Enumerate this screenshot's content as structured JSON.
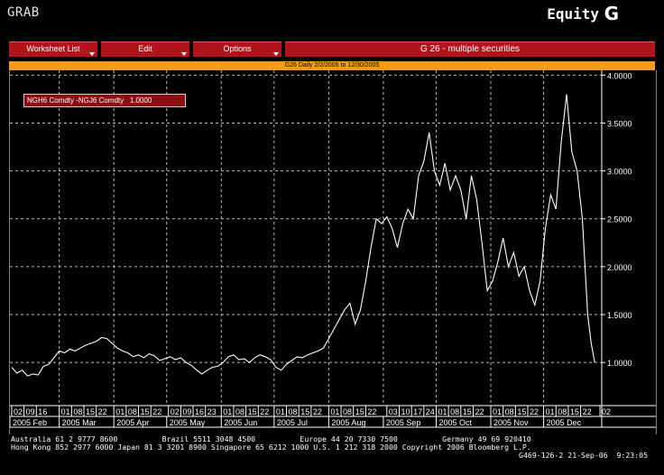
{
  "app_title": "GRAB",
  "screen_title": "Equity",
  "screen_letter": "G",
  "menu": {
    "worksheet_list": "Worksheet List",
    "edit": "Edit",
    "options": "Options",
    "security_title": "G 26 - multiple securities"
  },
  "chart_header": "G26 Daily 2/2/2005 to 12/30/2005",
  "legend": {
    "label": "NGH6 Comdty -NGJ6 Comdty",
    "value": "1.0000"
  },
  "colors": {
    "menu_red": "#b3141b",
    "header_orange": "#f39c1b",
    "legend_red": "#8b0d12",
    "line": "#ffffff"
  },
  "footer": {
    "line1": "Australia 61 2 9777 8600          Brazil 5511 3048 4500          Europe 44 20 7330 7500          Germany 49 69 920410",
    "line2": "Hong Kong 852 2977 6000 Japan 81 3 3201 8900 Singapore 65 6212 1000 U.S. 1 212 318 2000 Copyright 2006 Bloomberg L.P.",
    "line3": "G469-126-2 21-Sep-06  9:23:05"
  },
  "chart_data": {
    "type": "line",
    "title": "G26 Daily 2/2/2005 to 12/30/2005",
    "series": [
      {
        "name": "NGH6 Comdty -NGJ6 Comdty",
        "color": "#ffffff",
        "points": [
          [
            "2005-02-02",
            0.95
          ],
          [
            "2005-02-05",
            0.89
          ],
          [
            "2005-02-08",
            0.92
          ],
          [
            "2005-02-11",
            0.86
          ],
          [
            "2005-02-14",
            0.88
          ],
          [
            "2005-02-17",
            0.87
          ],
          [
            "2005-02-20",
            0.96
          ],
          [
            "2005-02-23",
            0.98
          ],
          [
            "2005-02-26",
            1.05
          ],
          [
            "2005-03-01",
            1.12
          ],
          [
            "2005-03-04",
            1.1
          ],
          [
            "2005-03-07",
            1.14
          ],
          [
            "2005-03-10",
            1.12
          ],
          [
            "2005-03-13",
            1.15
          ],
          [
            "2005-03-16",
            1.18
          ],
          [
            "2005-03-19",
            1.2
          ],
          [
            "2005-03-22",
            1.22
          ],
          [
            "2005-03-25",
            1.26
          ],
          [
            "2005-03-28",
            1.25
          ],
          [
            "2005-03-31",
            1.2
          ],
          [
            "2005-04-03",
            1.15
          ],
          [
            "2005-04-06",
            1.12
          ],
          [
            "2005-04-09",
            1.1
          ],
          [
            "2005-04-12",
            1.06
          ],
          [
            "2005-04-15",
            1.08
          ],
          [
            "2005-04-18",
            1.05
          ],
          [
            "2005-04-21",
            1.09
          ],
          [
            "2005-04-24",
            1.07
          ],
          [
            "2005-04-27",
            1.02
          ],
          [
            "2005-04-30",
            1.04
          ],
          [
            "2005-05-03",
            1.06
          ],
          [
            "2005-05-06",
            1.03
          ],
          [
            "2005-05-09",
            1.05
          ],
          [
            "2005-05-12",
            1.0
          ],
          [
            "2005-05-15",
            0.97
          ],
          [
            "2005-05-18",
            0.92
          ],
          [
            "2005-05-21",
            0.88
          ],
          [
            "2005-05-24",
            0.92
          ],
          [
            "2005-05-27",
            0.95
          ],
          [
            "2005-05-30",
            0.96
          ],
          [
            "2005-06-02",
            1.0
          ],
          [
            "2005-06-05",
            1.06
          ],
          [
            "2005-06-08",
            1.08
          ],
          [
            "2005-06-11",
            1.03
          ],
          [
            "2005-06-14",
            1.04
          ],
          [
            "2005-06-17",
            1.0
          ],
          [
            "2005-06-20",
            1.05
          ],
          [
            "2005-06-23",
            1.08
          ],
          [
            "2005-06-26",
            1.06
          ],
          [
            "2005-06-29",
            1.03
          ],
          [
            "2005-07-02",
            0.95
          ],
          [
            "2005-07-05",
            0.92
          ],
          [
            "2005-07-08",
            0.98
          ],
          [
            "2005-07-11",
            1.02
          ],
          [
            "2005-07-14",
            1.06
          ],
          [
            "2005-07-17",
            1.05
          ],
          [
            "2005-07-20",
            1.08
          ],
          [
            "2005-07-23",
            1.1
          ],
          [
            "2005-07-26",
            1.12
          ],
          [
            "2005-07-29",
            1.15
          ],
          [
            "2005-08-01",
            1.25
          ],
          [
            "2005-08-04",
            1.35
          ],
          [
            "2005-08-07",
            1.45
          ],
          [
            "2005-08-10",
            1.55
          ],
          [
            "2005-08-13",
            1.62
          ],
          [
            "2005-08-16",
            1.4
          ],
          [
            "2005-08-19",
            1.55
          ],
          [
            "2005-08-22",
            1.85
          ],
          [
            "2005-08-25",
            2.2
          ],
          [
            "2005-08-28",
            2.5
          ],
          [
            "2005-08-31",
            2.45
          ],
          [
            "2005-09-03",
            2.52
          ],
          [
            "2005-09-06",
            2.4
          ],
          [
            "2005-09-09",
            2.2
          ],
          [
            "2005-09-12",
            2.45
          ],
          [
            "2005-09-15",
            2.6
          ],
          [
            "2005-09-18",
            2.5
          ],
          [
            "2005-09-21",
            2.95
          ],
          [
            "2005-09-24",
            3.1
          ],
          [
            "2005-09-27",
            3.4
          ],
          [
            "2005-09-30",
            3.0
          ],
          [
            "2005-10-03",
            2.85
          ],
          [
            "2005-10-06",
            3.08
          ],
          [
            "2005-10-09",
            2.8
          ],
          [
            "2005-10-12",
            2.95
          ],
          [
            "2005-10-15",
            2.8
          ],
          [
            "2005-10-18",
            2.5
          ],
          [
            "2005-10-21",
            2.95
          ],
          [
            "2005-10-24",
            2.7
          ],
          [
            "2005-10-27",
            2.25
          ],
          [
            "2005-10-30",
            1.75
          ],
          [
            "2005-11-02",
            1.85
          ],
          [
            "2005-11-05",
            2.05
          ],
          [
            "2005-11-08",
            2.3
          ],
          [
            "2005-11-11",
            2.0
          ],
          [
            "2005-11-14",
            2.15
          ],
          [
            "2005-11-17",
            1.9
          ],
          [
            "2005-11-20",
            2.0
          ],
          [
            "2005-11-23",
            1.75
          ],
          [
            "2005-11-26",
            1.6
          ],
          [
            "2005-11-29",
            1.85
          ],
          [
            "2005-12-02",
            2.4
          ],
          [
            "2005-12-05",
            2.75
          ],
          [
            "2005-12-08",
            2.6
          ],
          [
            "2005-12-11",
            3.3
          ],
          [
            "2005-12-14",
            3.8
          ],
          [
            "2005-12-17",
            3.2
          ],
          [
            "2005-12-20",
            3.0
          ],
          [
            "2005-12-23",
            2.5
          ],
          [
            "2005-12-26",
            1.5
          ],
          [
            "2005-12-28",
            1.2
          ],
          [
            "2005-12-30",
            1.0
          ]
        ]
      }
    ],
    "y_ticks": [
      "1.0000",
      "1.5000",
      "2.0000",
      "2.5000",
      "3.0000",
      "3.5000",
      "4.0000"
    ],
    "ylim": [
      0.55,
      4.05
    ],
    "xlim": [
      "2005-02-01",
      "2006-01-03"
    ],
    "x_ticks": [
      [
        "2005-02-02",
        "02"
      ],
      [
        "2005-02-09",
        "09"
      ],
      [
        "2005-02-16",
        "16"
      ],
      [
        "2005-03-01",
        "01"
      ],
      [
        "2005-03-08",
        "08"
      ],
      [
        "2005-03-15",
        "15"
      ],
      [
        "2005-03-22",
        "22"
      ],
      [
        "2005-04-01",
        "01"
      ],
      [
        "2005-04-08",
        "08"
      ],
      [
        "2005-04-15",
        "15"
      ],
      [
        "2005-04-22",
        "22"
      ],
      [
        "2005-05-02",
        "02"
      ],
      [
        "2005-05-09",
        "09"
      ],
      [
        "2005-05-16",
        "16"
      ],
      [
        "2005-05-23",
        "23"
      ],
      [
        "2005-06-01",
        "01"
      ],
      [
        "2005-06-08",
        "08"
      ],
      [
        "2005-06-15",
        "15"
      ],
      [
        "2005-06-22",
        "22"
      ],
      [
        "2005-07-01",
        "01"
      ],
      [
        "2005-07-08",
        "08"
      ],
      [
        "2005-07-15",
        "15"
      ],
      [
        "2005-07-22",
        "22"
      ],
      [
        "2005-08-01",
        "01"
      ],
      [
        "2005-08-08",
        "08"
      ],
      [
        "2005-08-15",
        "15"
      ],
      [
        "2005-08-22",
        "22"
      ],
      [
        "2005-09-03",
        "03"
      ],
      [
        "2005-09-10",
        "10"
      ],
      [
        "2005-09-17",
        "17"
      ],
      [
        "2005-09-24",
        "24"
      ],
      [
        "2005-10-01",
        "01"
      ],
      [
        "2005-10-08",
        "08"
      ],
      [
        "2005-10-15",
        "15"
      ],
      [
        "2005-10-22",
        "22"
      ],
      [
        "2005-11-01",
        "01"
      ],
      [
        "2005-11-08",
        "08"
      ],
      [
        "2005-11-15",
        "15"
      ],
      [
        "2005-11-22",
        "22"
      ],
      [
        "2005-12-01",
        "01"
      ],
      [
        "2005-12-08",
        "08"
      ],
      [
        "2005-12-15",
        "15"
      ],
      [
        "2005-12-22",
        "22"
      ],
      [
        "2006-01-02",
        "02"
      ]
    ],
    "x_months": [
      [
        "2005-02-01",
        "2005 Feb"
      ],
      [
        "2005-03-01",
        "2005 Mar"
      ],
      [
        "2005-04-01",
        "2005 Apr"
      ],
      [
        "2005-05-01",
        "2005 May"
      ],
      [
        "2005-06-01",
        "2005 Jun"
      ],
      [
        "2005-07-01",
        "2005 Jul"
      ],
      [
        "2005-08-01",
        "2005 Aug"
      ],
      [
        "2005-09-01",
        "2005 Sep"
      ],
      [
        "2005-10-01",
        "2005 Oct"
      ],
      [
        "2005-11-01",
        "2005 Nov"
      ],
      [
        "2005-12-01",
        "2005 Dec"
      ]
    ],
    "grid": true
  }
}
